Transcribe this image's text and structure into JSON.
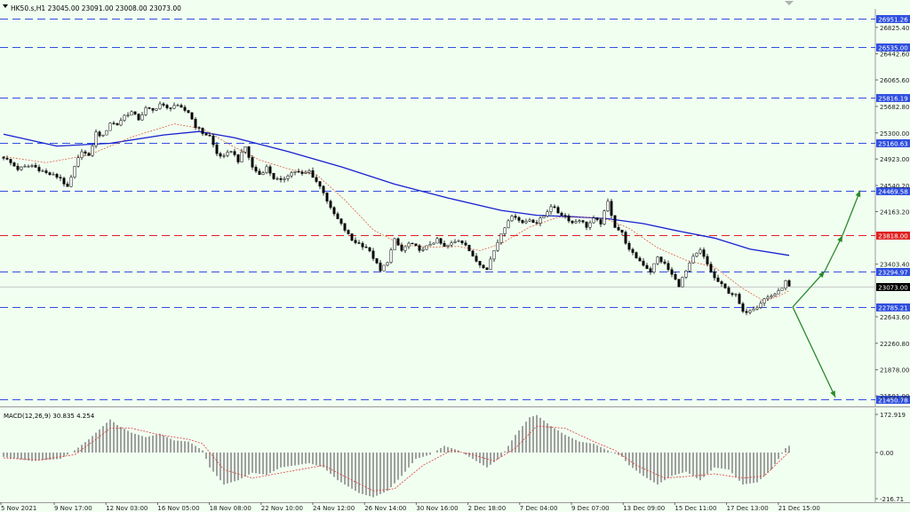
{
  "header": {
    "symbol_line": "HK50.s,H1  23045.00 23091.00 23008.00 23073.00"
  },
  "macd_panel": {
    "label": "MACD(12,26,9) 30.835 4.254",
    "ticks": [
      {
        "value": 172.919,
        "label": "172.919"
      },
      {
        "value": 0,
        "label": "0.00"
      },
      {
        "value": -216.71,
        "label": "-216.71"
      }
    ]
  },
  "colors": {
    "background": "#f1fff1",
    "level_line": "#2f4fe0",
    "resistance_line": "#e02020",
    "ma_fast": "#e06040",
    "ma_slow": "#1520d0",
    "arrow": "#2a8a2a",
    "candle": "#000000"
  },
  "chart_data": {
    "type": "candlestick",
    "symbol": "HK50.s",
    "timeframe": "H1",
    "ohlc_current": {
      "open": 23045.0,
      "high": 23091.0,
      "low": 23008.0,
      "close": 23073.0
    },
    "price_range": [
      21450,
      27000
    ],
    "x_labels": [
      "5 Nov 2021",
      "9 Nov 17:00",
      "12 Nov 03:00",
      "16 Nov 05:00",
      "18 Nov 08:00",
      "22 Nov 10:00",
      "24 Nov 12:00",
      "26 Nov 14:00",
      "30 Nov 16:00",
      "2 Dec 18:00",
      "7 Dec 04:00",
      "9 Dec 07:00",
      "13 Dec 09:00",
      "15 Dec 11:00",
      "17 Dec 13:00",
      "21 Dec 15:00"
    ],
    "y_ticks": [
      "26825.40",
      "26442.60",
      "26065.60",
      "25682.80",
      "25300.00",
      "24923.00",
      "24540.20",
      "24163.20",
      "23403.40",
      "22643.60",
      "22260.80",
      "21878.00",
      "21501.00"
    ],
    "y_tick_values": [
      26825.4,
      26442.6,
      26065.6,
      25682.8,
      25300.0,
      24923.0,
      24540.2,
      24163.2,
      23403.4,
      22643.6,
      22260.8,
      21878.0,
      21501.0
    ],
    "levels": [
      {
        "value": 26951.26,
        "label": "26951.26",
        "style": "blue-dashed"
      },
      {
        "value": 26535.0,
        "label": "26535.00",
        "style": "blue-dashed"
      },
      {
        "value": 25816.19,
        "label": "25816.19",
        "style": "blue-dashed"
      },
      {
        "value": 25160.63,
        "label": "25160.63",
        "style": "blue-dashed"
      },
      {
        "value": 24469.58,
        "label": "24469.58",
        "style": "blue-dashed"
      },
      {
        "value": 23818.0,
        "label": "23818.00",
        "style": "red-dashed"
      },
      {
        "value": 23294.97,
        "label": "23294.97",
        "style": "blue-dashed"
      },
      {
        "value": 22785.21,
        "label": "22785.21",
        "style": "blue-dashed"
      },
      {
        "value": 21450.78,
        "label": "21450.78",
        "style": "blue-dashed"
      }
    ],
    "current_price": {
      "value": 23073.0,
      "label": "23073.00"
    },
    "close_path": [
      [
        0,
        24950
      ],
      [
        4,
        24780
      ],
      [
        8,
        24830
      ],
      [
        12,
        24720
      ],
      [
        16,
        24650
      ],
      [
        18,
        24500
      ],
      [
        20,
        24800
      ],
      [
        22,
        25050
      ],
      [
        24,
        24950
      ],
      [
        26,
        25300
      ],
      [
        28,
        25250
      ],
      [
        30,
        25450
      ],
      [
        32,
        25420
      ],
      [
        34,
        25550
      ],
      [
        36,
        25600
      ],
      [
        38,
        25500
      ],
      [
        40,
        25650
      ],
      [
        42,
        25620
      ],
      [
        44,
        25720
      ],
      [
        46,
        25650
      ],
      [
        48,
        25700
      ],
      [
        50,
        25650
      ],
      [
        52,
        25600
      ],
      [
        54,
        25400
      ],
      [
        56,
        25300
      ],
      [
        58,
        25250
      ],
      [
        60,
        25000
      ],
      [
        62,
        24950
      ],
      [
        64,
        25050
      ],
      [
        66,
        24900
      ],
      [
        68,
        25100
      ],
      [
        70,
        24800
      ],
      [
        72,
        24700
      ],
      [
        74,
        24800
      ],
      [
        76,
        24650
      ],
      [
        78,
        24600
      ],
      [
        80,
        24700
      ],
      [
        82,
        24750
      ],
      [
        84,
        24700
      ],
      [
        86,
        24750
      ],
      [
        88,
        24600
      ],
      [
        90,
        24450
      ],
      [
        92,
        24200
      ],
      [
        94,
        24050
      ],
      [
        96,
        23900
      ],
      [
        98,
        23750
      ],
      [
        100,
        23700
      ],
      [
        102,
        23650
      ],
      [
        104,
        23500
      ],
      [
        106,
        23300
      ],
      [
        108,
        23450
      ],
      [
        110,
        23750
      ],
      [
        112,
        23600
      ],
      [
        114,
        23700
      ],
      [
        116,
        23650
      ],
      [
        118,
        23600
      ],
      [
        120,
        23700
      ],
      [
        122,
        23750
      ],
      [
        124,
        23650
      ],
      [
        126,
        23700
      ],
      [
        128,
        23750
      ],
      [
        130,
        23700
      ],
      [
        132,
        23500
      ],
      [
        134,
        23400
      ],
      [
        136,
        23350
      ],
      [
        138,
        23600
      ],
      [
        140,
        23850
      ],
      [
        142,
        24050
      ],
      [
        144,
        24100
      ],
      [
        146,
        24000
      ],
      [
        148,
        24050
      ],
      [
        150,
        24000
      ],
      [
        152,
        24100
      ],
      [
        154,
        24250
      ],
      [
        156,
        24150
      ],
      [
        158,
        24100
      ],
      [
        160,
        24000
      ],
      [
        162,
        24050
      ],
      [
        164,
        23950
      ],
      [
        166,
        24050
      ],
      [
        168,
        24000
      ],
      [
        170,
        24300
      ],
      [
        172,
        23950
      ],
      [
        174,
        23850
      ],
      [
        176,
        23600
      ],
      [
        178,
        23500
      ],
      [
        180,
        23400
      ],
      [
        182,
        23300
      ],
      [
        184,
        23500
      ],
      [
        186,
        23400
      ],
      [
        188,
        23250
      ],
      [
        190,
        23100
      ],
      [
        192,
        23300
      ],
      [
        194,
        23500
      ],
      [
        196,
        23600
      ],
      [
        198,
        23400
      ],
      [
        200,
        23200
      ],
      [
        202,
        23100
      ],
      [
        204,
        23000
      ],
      [
        206,
        22950
      ],
      [
        208,
        22700
      ],
      [
        210,
        22750
      ],
      [
        212,
        22800
      ],
      [
        214,
        22900
      ],
      [
        216,
        22950
      ],
      [
        218,
        23000
      ],
      [
        220,
        23150
      ],
      [
        221,
        23073
      ]
    ],
    "ma_fast_path": [
      [
        0,
        24960
      ],
      [
        12,
        24870
      ],
      [
        24,
        24980
      ],
      [
        36,
        25240
      ],
      [
        48,
        25430
      ],
      [
        56,
        25360
      ],
      [
        64,
        25120
      ],
      [
        72,
        24910
      ],
      [
        80,
        24780
      ],
      [
        88,
        24700
      ],
      [
        96,
        24330
      ],
      [
        104,
        23900
      ],
      [
        112,
        23680
      ],
      [
        120,
        23650
      ],
      [
        128,
        23660
      ],
      [
        134,
        23600
      ],
      [
        140,
        23700
      ],
      [
        148,
        23940
      ],
      [
        156,
        24080
      ],
      [
        164,
        24080
      ],
      [
        170,
        24050
      ],
      [
        176,
        23920
      ],
      [
        184,
        23640
      ],
      [
        192,
        23460
      ],
      [
        200,
        23360
      ],
      [
        208,
        23050
      ],
      [
        214,
        22870
      ],
      [
        218,
        22940
      ],
      [
        221,
        23020
      ]
    ],
    "ma_slow_path": [
      [
        0,
        25280
      ],
      [
        15,
        25110
      ],
      [
        30,
        25150
      ],
      [
        45,
        25270
      ],
      [
        55,
        25320
      ],
      [
        65,
        25230
      ],
      [
        80,
        25030
      ],
      [
        95,
        24810
      ],
      [
        110,
        24560
      ],
      [
        125,
        24360
      ],
      [
        140,
        24180
      ],
      [
        150,
        24110
      ],
      [
        160,
        24090
      ],
      [
        170,
        24060
      ],
      [
        180,
        23990
      ],
      [
        190,
        23880
      ],
      [
        200,
        23780
      ],
      [
        210,
        23620
      ],
      [
        221,
        23530
      ]
    ],
    "arrows": [
      {
        "from": [
          222,
          22785
        ],
        "to": [
          231,
          23300
        ],
        "kind": "up-segment"
      },
      {
        "from": [
          231,
          23300
        ],
        "to": [
          236,
          23818
        ],
        "kind": "up-segment"
      },
      {
        "from": [
          236,
          23818
        ],
        "to": [
          241,
          24469
        ],
        "kind": "up-arrow"
      },
      {
        "from": [
          222,
          22785
        ],
        "to": [
          234,
          21480
        ],
        "kind": "down-arrow"
      }
    ],
    "macd_path": [
      [
        0,
        -20
      ],
      [
        8,
        -40
      ],
      [
        16,
        -30
      ],
      [
        20,
        10
      ],
      [
        24,
        60
      ],
      [
        28,
        120
      ],
      [
        30,
        150
      ],
      [
        32,
        125
      ],
      [
        36,
        90
      ],
      [
        40,
        70
      ],
      [
        44,
        85
      ],
      [
        48,
        55
      ],
      [
        52,
        50
      ],
      [
        56,
        10
      ],
      [
        58,
        -70
      ],
      [
        62,
        -150
      ],
      [
        66,
        -130
      ],
      [
        70,
        -95
      ],
      [
        74,
        -105
      ],
      [
        78,
        -70
      ],
      [
        82,
        -60
      ],
      [
        86,
        -50
      ],
      [
        90,
        -70
      ],
      [
        94,
        -130
      ],
      [
        100,
        -190
      ],
      [
        104,
        -210
      ],
      [
        108,
        -180
      ],
      [
        112,
        -110
      ],
      [
        116,
        -30
      ],
      [
        120,
        -10
      ],
      [
        124,
        30
      ],
      [
        128,
        10
      ],
      [
        132,
        -30
      ],
      [
        136,
        -70
      ],
      [
        140,
        -20
      ],
      [
        144,
        80
      ],
      [
        148,
        160
      ],
      [
        150,
        170
      ],
      [
        154,
        120
      ],
      [
        158,
        80
      ],
      [
        162,
        50
      ],
      [
        166,
        40
      ],
      [
        170,
        10
      ],
      [
        174,
        -20
      ],
      [
        176,
        -60
      ],
      [
        180,
        -110
      ],
      [
        184,
        -150
      ],
      [
        188,
        -110
      ],
      [
        192,
        -90
      ],
      [
        196,
        -130
      ],
      [
        200,
        -70
      ],
      [
        204,
        -80
      ],
      [
        208,
        -150
      ],
      [
        212,
        -140
      ],
      [
        216,
        -80
      ],
      [
        220,
        20
      ],
      [
        221,
        31
      ]
    ],
    "macd_signal_path": [
      [
        0,
        -25
      ],
      [
        10,
        -35
      ],
      [
        20,
        -10
      ],
      [
        26,
        60
      ],
      [
        30,
        110
      ],
      [
        36,
        110
      ],
      [
        44,
        80
      ],
      [
        52,
        60
      ],
      [
        56,
        40
      ],
      [
        62,
        -80
      ],
      [
        70,
        -120
      ],
      [
        80,
        -90
      ],
      [
        90,
        -60
      ],
      [
        98,
        -130
      ],
      [
        104,
        -180
      ],
      [
        110,
        -170
      ],
      [
        118,
        -60
      ],
      [
        126,
        10
      ],
      [
        132,
        -10
      ],
      [
        138,
        -40
      ],
      [
        144,
        20
      ],
      [
        150,
        120
      ],
      [
        158,
        110
      ],
      [
        166,
        50
      ],
      [
        172,
        10
      ],
      [
        178,
        -60
      ],
      [
        186,
        -120
      ],
      [
        194,
        -110
      ],
      [
        200,
        -100
      ],
      [
        208,
        -120
      ],
      [
        214,
        -110
      ],
      [
        221,
        4
      ]
    ]
  }
}
